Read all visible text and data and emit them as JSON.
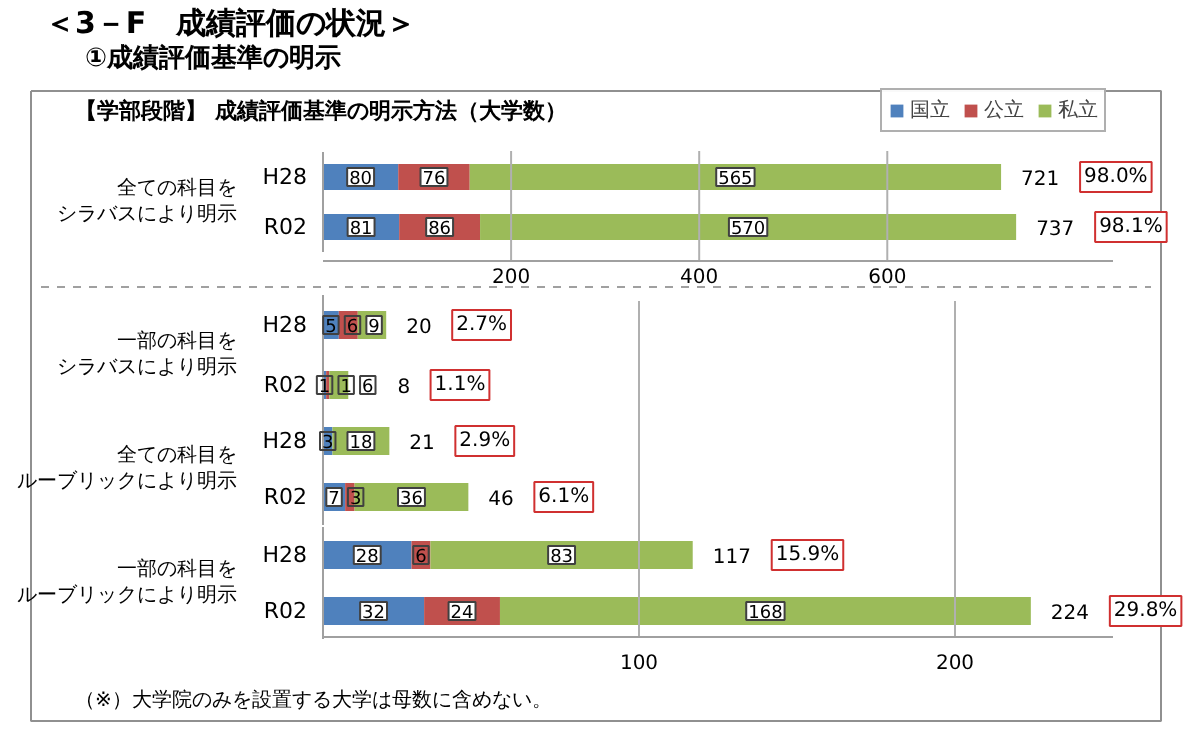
{
  "chart_data": [
    {
      "type": "bar",
      "orientation": "horizontal",
      "stacked": true,
      "title": "＜3－F　成績評価の状況＞",
      "subtitle": "①成績評価基準の明示",
      "ylabel": "全ての科目をシラバスにより明示",
      "categories": [
        "H28",
        "R02"
      ],
      "series": [
        {
          "name": "国立",
          "color": "#4f81bd",
          "values": [
            80,
            81
          ]
        },
        {
          "name": "公立",
          "color": "#c0504d",
          "values": [
            76,
            86
          ]
        },
        {
          "name": "私立",
          "color": "#9bbb59",
          "values": [
            565,
            570
          ]
        }
      ],
      "totals": [
        "721",
        "737"
      ],
      "data_labels": true,
      "xlim": [
        0,
        840
      ],
      "xticks": [
        200,
        400,
        600
      ],
      "grid": "x",
      "legend": "top right",
      "annotations": [
        "98.0%",
        "98.1%",
        "【学部段階】 成績評価基準の明示方法（大学数）"
      ]
    },
    {
      "type": "bar",
      "orientation": "horizontal",
      "stacked": true,
      "ylabel": "一部の科目をシラバスにより明示",
      "categories": [
        "H28",
        "R02"
      ],
      "series": [
        {
          "color": "#4f81bd",
          "values": [
            5,
            1
          ]
        },
        {
          "color": "#c0504d",
          "values": [
            6,
            1
          ]
        },
        {
          "color": "#9bbb59",
          "values": [
            9,
            6
          ]
        }
      ],
      "totals": [
        "20",
        "8"
      ],
      "data_labels": true,
      "tick_labels": "y",
      "annotations": [
        "2.7%",
        "1.1%"
      ]
    },
    {
      "type": "bar",
      "orientation": "horizontal",
      "stacked": true,
      "ylabel": "全ての科目をルーブリックにより明示",
      "categories": [
        "H28",
        "R02"
      ],
      "series": [
        {
          "color": "#4f81bd",
          "values": [
            3,
            7
          ]
        },
        {
          "color": "#c0504d",
          "values": [
            null,
            3
          ]
        },
        {
          "color": "#9bbb59",
          "values": [
            18,
            36
          ]
        }
      ],
      "totals": [
        "21",
        "46"
      ],
      "data_labels": true,
      "tick_labels": "y",
      "annotations": [
        "2.9%",
        "6.1%"
      ]
    },
    {
      "type": "bar",
      "orientation": "horizontal",
      "stacked": true,
      "ylabel": "一部の科目をルーブリックにより明示",
      "categories": [
        "H28",
        "R02"
      ],
      "series": [
        {
          "color": "#4f81bd",
          "values": [
            28,
            32
          ]
        },
        {
          "color": "#c0504d",
          "values": [
            6,
            24
          ]
        },
        {
          "color": "#9bbb59",
          "values": [
            83,
            168
          ]
        }
      ],
      "totals": [
        "117",
        "224"
      ],
      "data_labels": true,
      "xlim": [
        0,
        250
      ],
      "xticks": [
        100,
        200
      ],
      "grid": "x",
      "annotations": [
        "15.9%",
        "29.8%",
        "（※）大学院のみを設置する大学は母数に含めない。"
      ]
    }
  ]
}
